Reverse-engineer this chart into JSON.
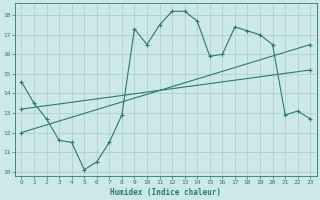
{
  "xlabel": "Humidex (Indice chaleur)",
  "background_color": "#cce8e8",
  "grid_color": "#aacccc",
  "line_color": "#2a7a6a",
  "xlim": [
    -0.5,
    23.5
  ],
  "ylim": [
    9.8,
    18.6
  ],
  "yticks": [
    10,
    11,
    12,
    13,
    14,
    15,
    16,
    17,
    18
  ],
  "xticks": [
    0,
    1,
    2,
    3,
    4,
    5,
    6,
    7,
    8,
    9,
    10,
    11,
    12,
    13,
    14,
    15,
    16,
    17,
    18,
    19,
    20,
    21,
    22,
    23
  ],
  "series1_x": [
    0,
    1,
    2,
    3,
    4,
    5,
    6,
    7,
    8,
    9,
    10,
    11,
    12,
    13,
    14,
    15,
    16,
    17,
    18,
    19,
    20,
    21,
    22,
    23
  ],
  "series1_y": [
    14.6,
    13.5,
    12.7,
    11.6,
    11.5,
    10.1,
    10.5,
    11.5,
    12.9,
    17.3,
    16.5,
    17.5,
    18.2,
    18.2,
    17.7,
    15.9,
    16.0,
    17.4,
    17.2,
    17.0,
    16.5,
    12.9,
    13.1,
    12.7
  ],
  "series2_x": [
    0,
    23
  ],
  "series2_y": [
    12.0,
    16.5
  ],
  "series3_x": [
    0,
    23
  ],
  "series3_y": [
    13.2,
    15.2
  ]
}
